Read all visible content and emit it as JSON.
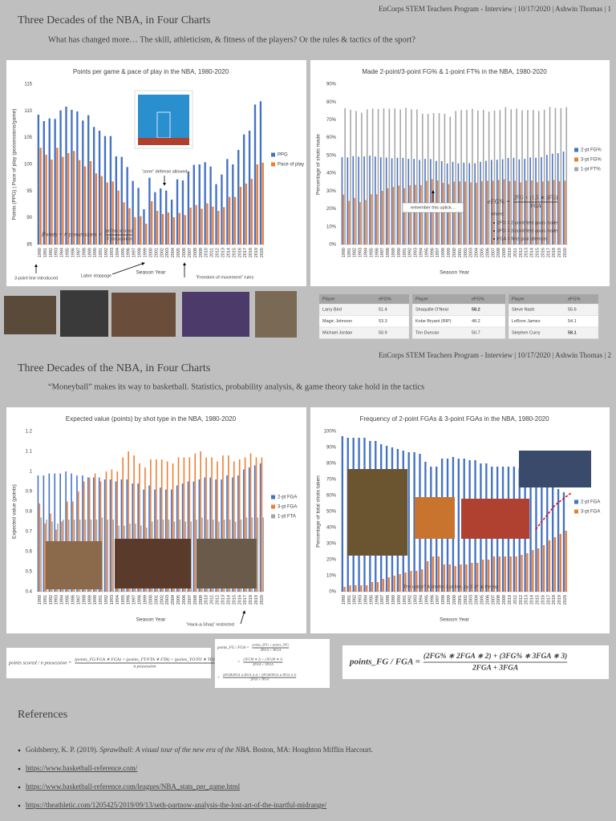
{
  "slides": [
    {
      "header": "EnCorps STEM Teachers Program - Interview | 10/17/2020 | Ashwin Thomas | 1",
      "title": "Three Decades of the NBA, in Four Charts",
      "subtitle": "What has changed more… The skill, athleticism, & fitness of the players? Or the rules & tactics of the sport?"
    },
    {
      "header": "EnCorps STEM Teachers Program - Interview | 10/17/2020 | Ashwin Thomas | 2",
      "title": "Three Decades of the NBA, in Four Charts",
      "subtitle": "“Moneyball” makes its way to basketball. Statistics, probability analysis, & game theory take hold in the tactics"
    }
  ],
  "chart_data": [
    {
      "type": "bar",
      "title": "Points per game & pace of play in the NBA, 1980-2020",
      "x_label": "Season Year",
      "y_label": "Points (PPG) | Pace of play (possessions/game)",
      "categories": [
        "1980",
        "1981",
        "1982",
        "1983",
        "1984",
        "1985",
        "1986",
        "1987",
        "1988",
        "1989",
        "1990",
        "1991",
        "1992",
        "1993",
        "1994",
        "1995",
        "1996",
        "1997",
        "1998",
        "1999",
        "2000",
        "2001",
        "2002",
        "2003",
        "2004",
        "2005",
        "2006",
        "2007",
        "2008",
        "2009",
        "2010",
        "2011",
        "2012",
        "2013",
        "2014",
        "2015",
        "2016",
        "2017",
        "2018",
        "2019",
        "2020"
      ],
      "series": [
        {
          "name": "PPG",
          "color": "#4472c4",
          "values": [
            109.3,
            108.1,
            108.6,
            108.5,
            110.1,
            110.8,
            110.2,
            109.9,
            108.2,
            109.2,
            107.0,
            106.3,
            105.3,
            105.3,
            101.5,
            101.4,
            99.5,
            96.9,
            95.6,
            91.6,
            97.5,
            94.8,
            95.5,
            95.1,
            93.4,
            97.2,
            97.0,
            98.7,
            99.9,
            100.0,
            100.4,
            99.6,
            96.3,
            98.1,
            101.0,
            100.0,
            102.7,
            105.6,
            106.3,
            111.2,
            111.8
          ]
        },
        {
          "name": "Pace of play",
          "color": "#ed7d31",
          "values": [
            103.1,
            101.8,
            100.9,
            103.1,
            101.4,
            102.1,
            102.5,
            100.8,
            99.6,
            100.6,
            98.3,
            97.8,
            96.6,
            96.8,
            95.1,
            92.9,
            91.8,
            90.1,
            90.3,
            88.9,
            93.1,
            91.3,
            90.7,
            91.0,
            90.1,
            90.9,
            90.5,
            91.9,
            92.4,
            91.7,
            92.7,
            92.1,
            91.3,
            92.0,
            93.9,
            93.9,
            95.8,
            96.4,
            97.3,
            100.0,
            100.3
          ]
        }
      ],
      "ylim": [
        85,
        115
      ],
      "yticks": [
        85,
        90,
        95,
        100,
        105,
        110,
        115
      ],
      "grid": false,
      "legend": "right",
      "annotations": [
        "“zone” defense allowed",
        "3-point line introduced",
        "Labor stoppage",
        "“Freedom of movement” rules"
      ],
      "formula": {
        "lhs": "Points = # possessions ×",
        "num": "points scored",
        "den": "# possession"
      }
    },
    {
      "type": "bar",
      "title": "Made 2-point/3-point FG% & 1-point FT% in the NBA, 1980-2020",
      "x_label": "Season Year",
      "y_label": "Percentage of shots made",
      "categories": [
        "1980",
        "1981",
        "1982",
        "1983",
        "1984",
        "1985",
        "1986",
        "1987",
        "1988",
        "1989",
        "1990",
        "1991",
        "1992",
        "1993",
        "1994",
        "1995",
        "1996",
        "1997",
        "1998",
        "1999",
        "2000",
        "2001",
        "2002",
        "2003",
        "2004",
        "2005",
        "2006",
        "2007",
        "2008",
        "2009",
        "2010",
        "2011",
        "2012",
        "2013",
        "2014",
        "2015",
        "2016",
        "2017",
        "2018",
        "2019",
        "2020"
      ],
      "series": [
        {
          "name": "2-pt FG%",
          "color": "#4472c4",
          "values": [
            49.1,
            48.9,
            49.6,
            49.3,
            49.5,
            49.9,
            49.4,
            49.0,
            48.8,
            48.4,
            48.7,
            48.6,
            48.1,
            48.1,
            47.5,
            48.1,
            48.0,
            46.9,
            46.8,
            45.5,
            46.4,
            45.6,
            46.0,
            45.7,
            45.6,
            46.4,
            47.0,
            47.5,
            47.6,
            47.9,
            48.6,
            48.7,
            47.8,
            48.1,
            48.9,
            48.7,
            49.1,
            50.3,
            51.0,
            51.3,
            52.2
          ]
        },
        {
          "name": "3-pt FG%",
          "color": "#ed7d31",
          "values": [
            28.0,
            24.5,
            26.2,
            23.8,
            25.0,
            28.2,
            28.2,
            30.1,
            31.6,
            32.3,
            33.1,
            31.6,
            33.2,
            33.5,
            33.3,
            35.8,
            36.7,
            36.0,
            34.6,
            33.9,
            35.3,
            35.4,
            35.4,
            34.9,
            34.7,
            35.6,
            35.8,
            35.8,
            36.2,
            36.7,
            35.5,
            35.8,
            34.9,
            35.9,
            36.0,
            35.0,
            35.4,
            35.8,
            36.2,
            35.5,
            35.8
          ]
        },
        {
          "name": "1-pt FT%",
          "color": "#a5a5a5",
          "values": [
            76.5,
            75.6,
            75.0,
            74.0,
            75.8,
            76.3,
            76.1,
            76.4,
            76.2,
            76.4,
            75.8,
            76.7,
            75.9,
            75.8,
            73.4,
            73.3,
            73.8,
            73.8,
            73.4,
            71.8,
            75.0,
            75.5,
            75.6,
            76.2,
            75.3,
            75.6,
            74.6,
            75.2,
            75.5,
            77.1,
            75.9,
            76.3,
            75.4,
            75.5,
            75.6,
            75.0,
            75.7,
            77.2,
            76.7,
            76.6,
            77.1
          ]
        }
      ],
      "ylim": [
        0,
        90
      ],
      "yticks": [
        {
          "value": 0,
          "label": "0%"
        },
        {
          "value": 10,
          "label": "10%"
        },
        {
          "value": 20,
          "label": "20%"
        },
        {
          "value": 30,
          "label": "30%"
        },
        {
          "value": 40,
          "label": "40%"
        },
        {
          "value": 50,
          "label": "50%"
        },
        {
          "value": 60,
          "label": "60%"
        },
        {
          "value": 70,
          "label": "70%"
        },
        {
          "value": 80,
          "label": "80%"
        },
        {
          "value": 90,
          "label": "90%"
        }
      ],
      "grid": false,
      "legend": "right",
      "annotations": [
        "remember this uptick…",
        "where:",
        "2FG = 2-point field goals made",
        "3FG = 3-point field goals made",
        "FGA = field goal attempts"
      ],
      "formula": {
        "lhs": "eFG% =",
        "num": "2FG + (1.5 ∗ 3FG)",
        "den": "FGA"
      }
    },
    {
      "type": "bar",
      "title": "Expected value (points) by shot type in the NBA, 1980-2020",
      "x_label": "Season Year",
      "y_label": "Expected value (points)",
      "categories": [
        "1980",
        "1981",
        "1982",
        "1983",
        "1984",
        "1985",
        "1986",
        "1987",
        "1988",
        "1989",
        "1990",
        "1991",
        "1992",
        "1993",
        "1994",
        "1995",
        "1996",
        "1997",
        "1998",
        "1999",
        "2000",
        "2001",
        "2002",
        "2003",
        "2004",
        "2005",
        "2006",
        "2007",
        "2008",
        "2009",
        "2010",
        "2011",
        "2012",
        "2013",
        "2014",
        "2015",
        "2016",
        "2017",
        "2018",
        "2019",
        "2020"
      ],
      "series": [
        {
          "name": "2-pt FGA",
          "color": "#4472c4",
          "values": [
            0.98,
            0.98,
            0.99,
            0.99,
            0.99,
            1.0,
            0.99,
            0.98,
            0.98,
            0.97,
            0.97,
            0.97,
            0.96,
            0.96,
            0.95,
            0.96,
            0.96,
            0.94,
            0.94,
            0.91,
            0.93,
            0.91,
            0.92,
            0.91,
            0.91,
            0.93,
            0.94,
            0.95,
            0.95,
            0.96,
            0.97,
            0.97,
            0.96,
            0.96,
            0.98,
            0.97,
            0.98,
            1.01,
            1.02,
            1.03,
            1.04
          ]
        },
        {
          "name": "3-pt FGA",
          "color": "#ed7d31",
          "values": [
            0.84,
            0.74,
            0.79,
            0.71,
            0.75,
            0.85,
            0.85,
            0.9,
            0.95,
            0.97,
            0.99,
            0.95,
            1.0,
            1.01,
            1.0,
            1.07,
            1.1,
            1.08,
            1.04,
            1.02,
            1.06,
            1.06,
            1.06,
            1.05,
            1.04,
            1.07,
            1.07,
            1.07,
            1.09,
            1.1,
            1.07,
            1.07,
            1.05,
            1.08,
            1.08,
            1.05,
            1.06,
            1.07,
            1.09,
            1.07,
            1.07
          ]
        },
        {
          "name": "1-pt FTA",
          "color": "#a5a5a5",
          "values": [
            0.77,
            0.76,
            0.75,
            0.74,
            0.76,
            0.76,
            0.76,
            0.76,
            0.76,
            0.76,
            0.76,
            0.77,
            0.76,
            0.76,
            0.73,
            0.73,
            0.74,
            0.74,
            0.73,
            0.72,
            0.75,
            0.76,
            0.76,
            0.76,
            0.75,
            0.76,
            0.75,
            0.75,
            0.76,
            0.77,
            0.76,
            0.76,
            0.75,
            0.76,
            0.76,
            0.75,
            0.76,
            0.77,
            0.77,
            0.77,
            0.77
          ]
        }
      ],
      "ylim": [
        0.4,
        1.2
      ],
      "yticks": [
        0.4,
        0.5,
        0.6,
        0.7,
        0.8,
        0.9,
        1,
        1.1,
        1.2
      ],
      "grid": false,
      "legend": "right",
      "annotations": [
        "“Hack-a-Shaq” restricted"
      ]
    },
    {
      "type": "bar",
      "title": "Frequency of 2-point FGAs & 3-point FGAs in the NBA, 1980-2020",
      "x_label": "Season Year",
      "y_label": "Percentage of total shots taken",
      "categories": [
        "1980",
        "1981",
        "1982",
        "1983",
        "1984",
        "1985",
        "1986",
        "1987",
        "1988",
        "1989",
        "1990",
        "1991",
        "1992",
        "1993",
        "1994",
        "1995",
        "1996",
        "1997",
        "1998",
        "1999",
        "2000",
        "2001",
        "2002",
        "2003",
        "2004",
        "2005",
        "2006",
        "2007",
        "2008",
        "2009",
        "2010",
        "2011",
        "2012",
        "2013",
        "2014",
        "2015",
        "2016",
        "2017",
        "2018",
        "2019",
        "2020"
      ],
      "series": [
        {
          "name": "2-pt FGA",
          "color": "#4472c4",
          "values": [
            97,
            96,
            96,
            96,
            96,
            94,
            94,
            92,
            91,
            90,
            89,
            88,
            87,
            87,
            86,
            81,
            78,
            78,
            83,
            83,
            84,
            83,
            83,
            82,
            82,
            80,
            80,
            78,
            78,
            78,
            78,
            78,
            77,
            76,
            74,
            73,
            71,
            68,
            66,
            64,
            62
          ]
        },
        {
          "name": "3-pt FGA",
          "color": "#ed7d31",
          "values": [
            3,
            4,
            4,
            4,
            4,
            6,
            6,
            8,
            9,
            10,
            11,
            12,
            13,
            13,
            14,
            19,
            22,
            22,
            17,
            17,
            16,
            17,
            17,
            18,
            18,
            20,
            20,
            22,
            22,
            22,
            22,
            22,
            23,
            24,
            26,
            27,
            29,
            32,
            34,
            36,
            38
          ]
        }
      ],
      "ylim": [
        0,
        100
      ],
      "yticks": [
        {
          "value": 0,
          "label": "0%"
        },
        {
          "value": 10,
          "label": "10%"
        },
        {
          "value": 20,
          "label": "20%"
        },
        {
          "value": 30,
          "label": "30%"
        },
        {
          "value": 40,
          "label": "40%"
        },
        {
          "value": 50,
          "label": "50%"
        },
        {
          "value": 60,
          "label": "60%"
        },
        {
          "value": 70,
          "label": "70%"
        },
        {
          "value": 80,
          "label": "80%"
        },
        {
          "value": 90,
          "label": "90%"
        },
        {
          "value": 100,
          "label": "100%"
        }
      ],
      "grid": false,
      "legend": "right",
      "annotations": [
        "The uptick? A shorter 3-pt line, by 1'-9\" at the top"
      ]
    }
  ],
  "tables": [
    {
      "columns": [
        "Player",
        "eFG%"
      ],
      "rows": [
        [
          "Larry Bird",
          51.4
        ],
        [
          "Magic Johnson",
          53.3
        ],
        [
          "Michael Jordan",
          50.9
        ]
      ],
      "bold_rows": []
    },
    {
      "columns": [
        "Player",
        "eFG%"
      ],
      "rows": [
        [
          "Shaquille O'Neal",
          58.2
        ],
        [
          "Kobe Bryant (RIP)",
          48.2
        ],
        [
          "Tim Duncan",
          50.7
        ]
      ],
      "bold_rows": [
        0
      ]
    },
    {
      "columns": [
        "Player",
        "eFG%"
      ],
      "rows": [
        [
          "Steve Nash",
          55.6
        ],
        [
          "LeBron James",
          54.1
        ],
        [
          "Stephen Curry",
          58.1
        ]
      ],
      "bold_rows": [
        2
      ]
    }
  ],
  "formulas": [
    {
      "lhs": "points scored / n possession =",
      "num": "(points_FG/FGA ∗ FGA) + (points_FT/FTA ∗ FTA) + (points_TO/TO ∗ TO)",
      "den": "n possession"
    },
    {
      "lhs": "points_FG / FGA =",
      "num": "points_2FG + points_3FG",
      "den": "2FGA + 3FGA"
    },
    {
      "lhs": "=",
      "num": "(2FGM ∗ 2) + (3FGM ∗ 3)",
      "den": "2FGA + 3FGA"
    },
    {
      "lhs": "=",
      "num": "(2FGM/2FGA ∗ 2FGA ∗ 2) + (3FGM/3FGA ∗ 3FGA ∗ 3)",
      "den": "2FGA + 3FGA"
    },
    {
      "lhs": "points_FG / FGA =",
      "num": "(2FG% ∗ 2FGA ∗ 2) + (3FG% ∗ 3FGA ∗ 3)",
      "den": "2FGA + 3FGA"
    }
  ],
  "references": {
    "title": "References",
    "first": {
      "before": "Goldsberry, K. P. (2019). ",
      "italic": "Sprawlball: A visual tour of the new era of the NBA",
      "after": ". Boston, MA: Houghton Mifflin Harcourt."
    },
    "links": [
      "https://www.basketball-reference.com/",
      "https://www.basketball-reference.com/leagues/NBA_stats_per_game.html",
      "https://theathletic.com/1205425/2019/09/13/seth-partnow-analysis-the-lost-art-of-the-inartful-midrange/"
    ]
  }
}
